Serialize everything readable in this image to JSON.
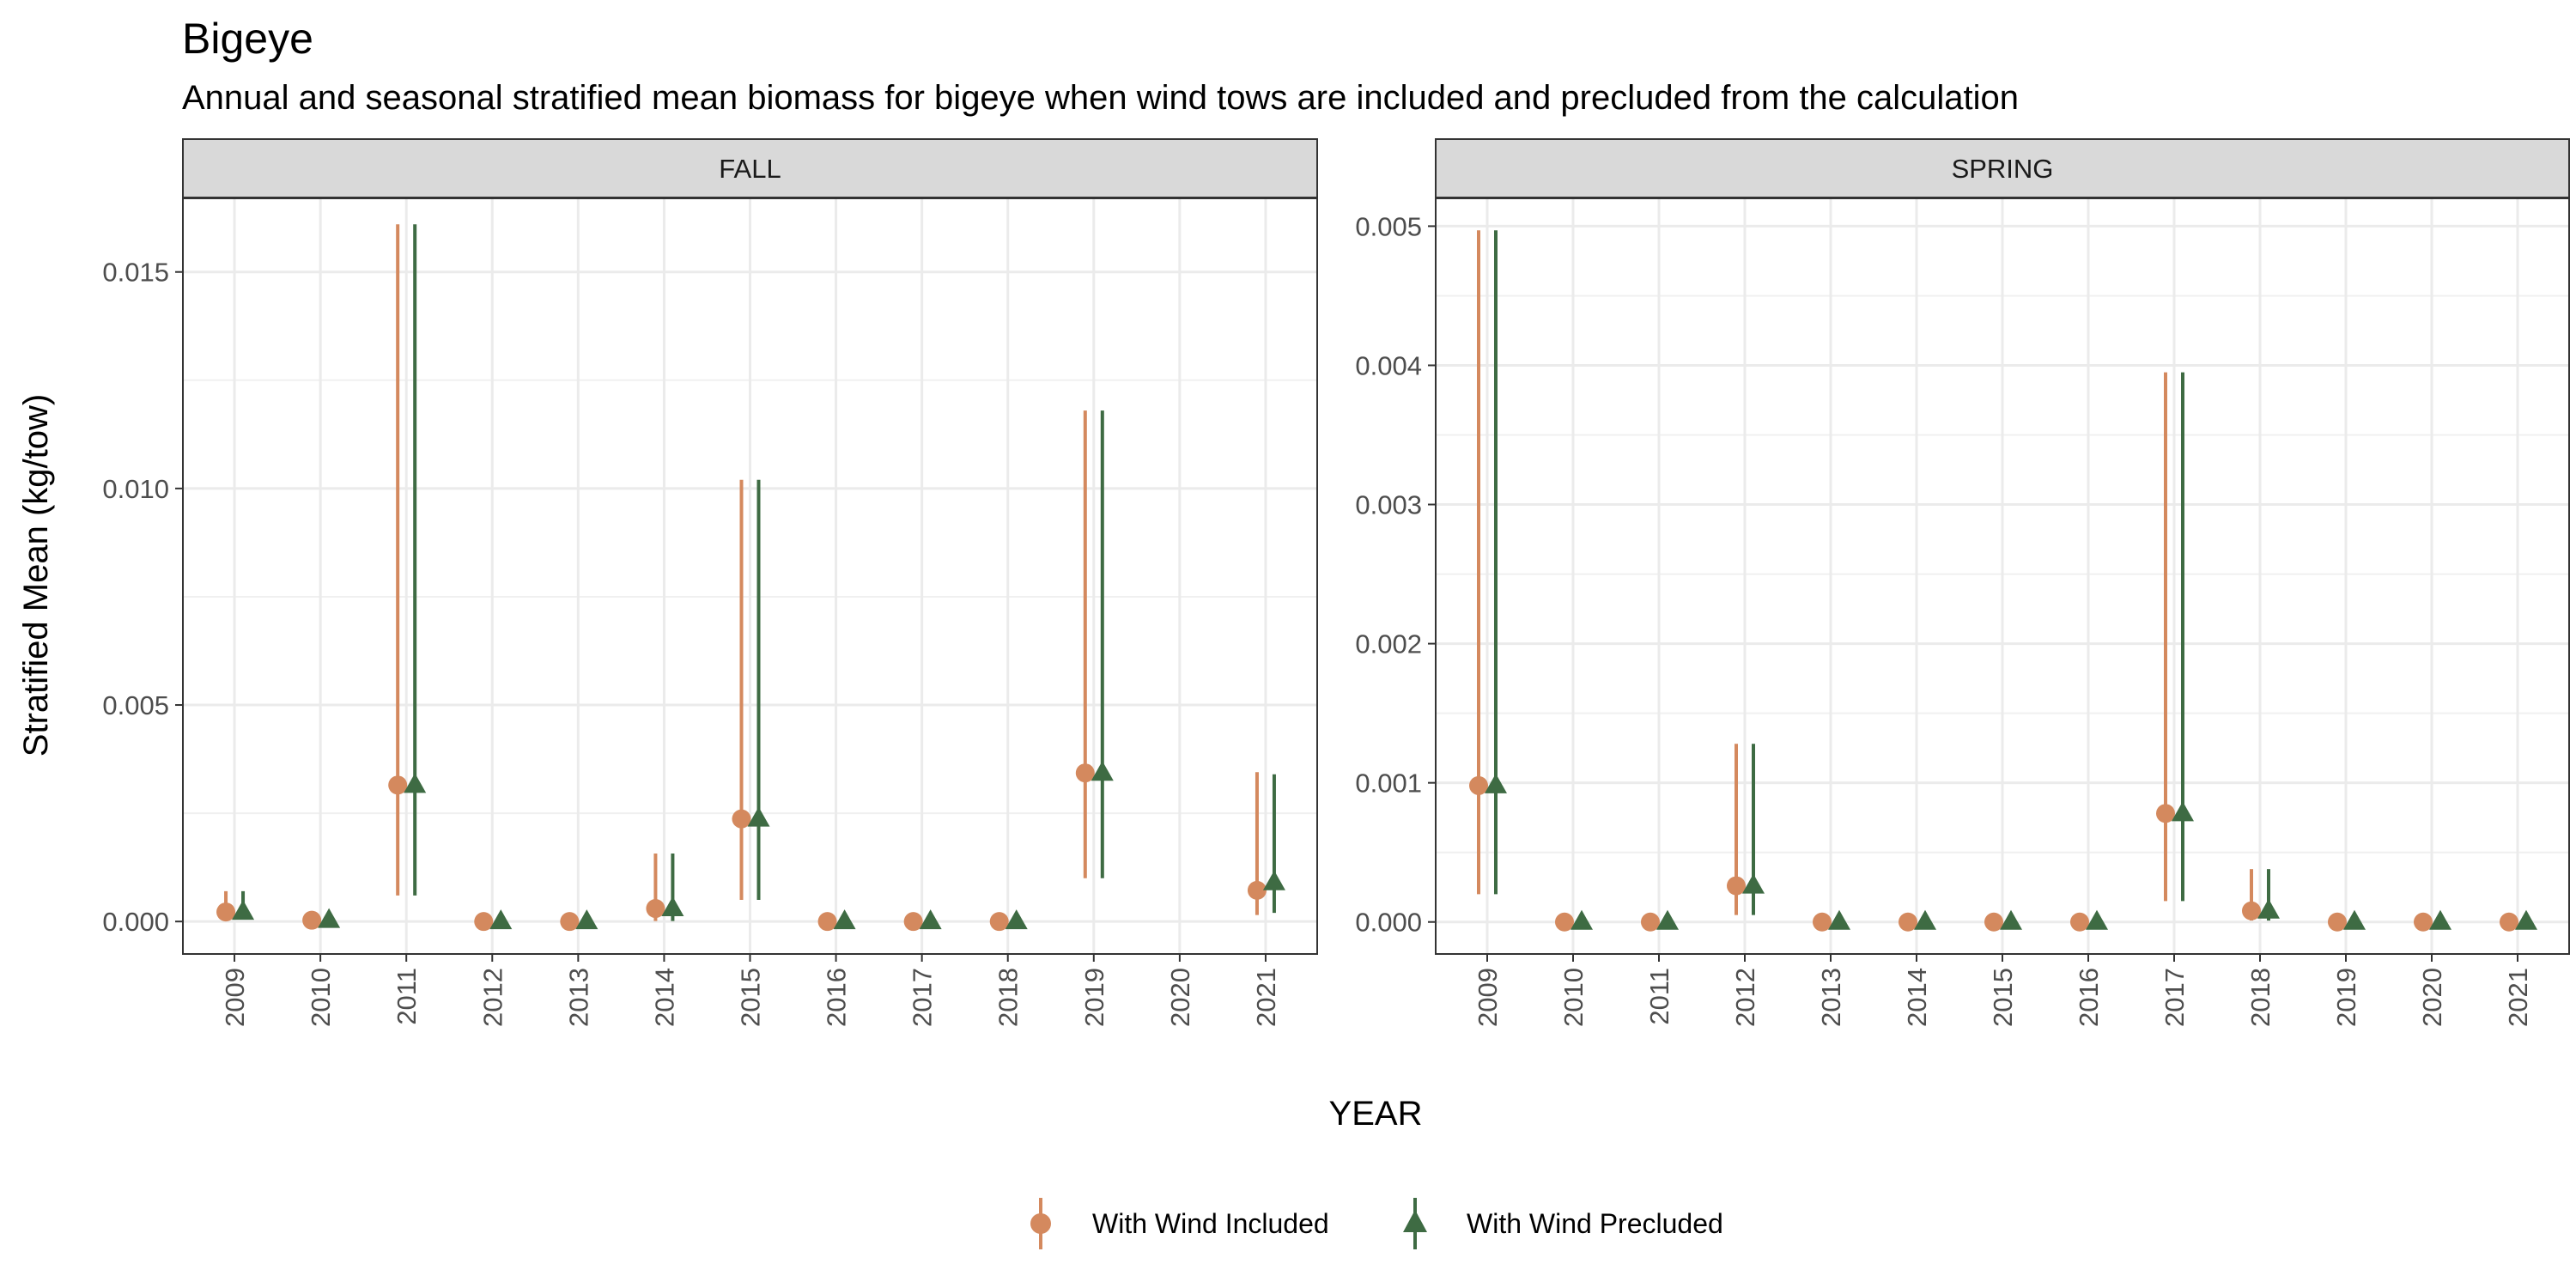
{
  "title": "Bigeye",
  "subtitle": "Annual and seasonal stratified mean biomass for bigeye when wind tows are included and precluded from the calculation",
  "colors": {
    "included": "#D4895E",
    "precluded": "#3E6B43"
  },
  "legend": {
    "position": "bottom",
    "items": [
      {
        "key": "included",
        "label": "With Wind Included",
        "marker": "circle"
      },
      {
        "key": "precluded",
        "label": "With Wind Precluded",
        "marker": "triangle"
      }
    ]
  },
  "chart_data": {
    "type": "scatter",
    "geometry": "pointrange",
    "xlabel": "YEAR",
    "ylabel": "Stratified Mean (kg/tow)",
    "grid": true,
    "panels": [
      {
        "name": "FALL",
        "ylim": [
          -0.00075,
          0.0167
        ],
        "yticks": [
          "0.000",
          "0.005",
          "0.010",
          "0.015"
        ],
        "categories": [
          "2009",
          "2010",
          "2011",
          "2012",
          "2013",
          "2014",
          "2015",
          "2016",
          "2017",
          "2018",
          "2019",
          "2020",
          "2021"
        ],
        "series": [
          {
            "name": "With Wind Included",
            "key": "included",
            "values": [
              0.00022,
              3e-05,
              0.00315,
              0.0,
              0.0,
              0.0003,
              0.00237,
              0.0,
              0.0,
              0.0,
              0.00343,
              null,
              0.00072
            ],
            "lower": [
              5e-05,
              0.0,
              0.0006,
              0.0,
              0.0,
              1e-05,
              0.0005,
              0.0,
              0.0,
              0.0,
              0.001,
              null,
              0.00015
            ],
            "upper": [
              0.0007,
              5e-05,
              0.0161,
              0.0,
              0.0,
              0.00157,
              0.0102,
              0.0,
              0.0,
              0.0,
              0.0118,
              null,
              0.00345
            ]
          },
          {
            "name": "With Wind Precluded",
            "key": "precluded",
            "values": [
              0.00022,
              3e-05,
              0.00315,
              0.0,
              0.0,
              0.0003,
              0.00237,
              0.0,
              0.0,
              0.0,
              0.00343,
              null,
              0.0009
            ],
            "lower": [
              5e-05,
              0.0,
              0.0006,
              0.0,
              0.0,
              1e-05,
              0.0005,
              0.0,
              0.0,
              0.0,
              0.001,
              null,
              0.0002
            ],
            "upper": [
              0.0007,
              5e-05,
              0.0161,
              0.0,
              0.0,
              0.00157,
              0.0102,
              0.0,
              0.0,
              0.0,
              0.0118,
              null,
              0.0034
            ]
          }
        ]
      },
      {
        "name": "SPRING",
        "ylim": [
          -0.00023,
          0.0052
        ],
        "yticks": [
          "0.000",
          "0.001",
          "0.002",
          "0.003",
          "0.004",
          "0.005"
        ],
        "categories": [
          "2009",
          "2010",
          "2011",
          "2012",
          "2013",
          "2014",
          "2015",
          "2016",
          "2017",
          "2018",
          "2019",
          "2020",
          "2021"
        ],
        "series": [
          {
            "name": "With Wind Included",
            "key": "included",
            "values": [
              0.00098,
              0.0,
              0.0,
              0.00026,
              0.0,
              0.0,
              0.0,
              0.0,
              0.00078,
              8e-05,
              0.0,
              0.0,
              0.0
            ],
            "lower": [
              0.0002,
              0.0,
              0.0,
              5e-05,
              0.0,
              0.0,
              0.0,
              0.0,
              0.00015,
              1e-05,
              0.0,
              0.0,
              0.0
            ],
            "upper": [
              0.00497,
              0.0,
              0.0,
              0.00128,
              0.0,
              0.0,
              0.0,
              0.0,
              0.00395,
              0.00038,
              0.0,
              0.0,
              0.0
            ]
          },
          {
            "name": "With Wind Precluded",
            "key": "precluded",
            "values": [
              0.00098,
              0.0,
              0.0,
              0.00026,
              0.0,
              0.0,
              0.0,
              0.0,
              0.00078,
              8e-05,
              0.0,
              0.0,
              0.0
            ],
            "lower": [
              0.0002,
              0.0,
              0.0,
              5e-05,
              0.0,
              0.0,
              0.0,
              0.0,
              0.00015,
              1e-05,
              0.0,
              0.0,
              0.0
            ],
            "upper": [
              0.00497,
              0.0,
              0.0,
              0.00128,
              0.0,
              0.0,
              0.0,
              0.0,
              0.00395,
              0.00038,
              0.0,
              0.0,
              0.0
            ]
          }
        ]
      }
    ]
  }
}
